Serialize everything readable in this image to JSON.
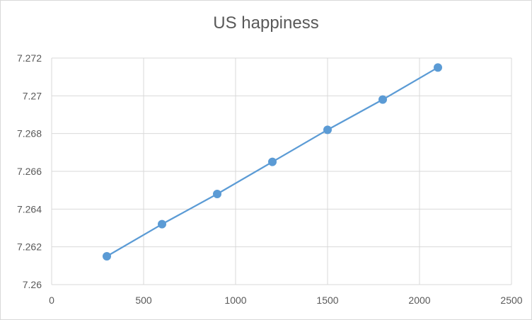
{
  "chart_data": {
    "type": "scatter",
    "title": "US happiness",
    "xlabel": "",
    "ylabel": "",
    "xlim": [
      0,
      2500
    ],
    "ylim": [
      7.26,
      7.272
    ],
    "x_ticks": [
      0,
      500,
      1000,
      1500,
      2000,
      2500
    ],
    "y_ticks": [
      7.26,
      7.262,
      7.264,
      7.266,
      7.268,
      7.27,
      7.272
    ],
    "x_tick_labels": [
      "0",
      "500",
      "1000",
      "1500",
      "2000",
      "2500"
    ],
    "y_tick_labels": [
      "7.26",
      "7.262",
      "7.264",
      "7.266",
      "7.268",
      "7.27",
      "7.272"
    ],
    "grid": true,
    "legend": "none",
    "series_color": "#5b9bd5",
    "grid_color": "#d9d9d9",
    "series": [
      {
        "x": [
          300,
          600,
          900,
          1200,
          1500,
          1800,
          2100
        ],
        "values": [
          7.2615,
          7.2632,
          7.2648,
          7.2665,
          7.2682,
          7.2698,
          7.2715
        ]
      }
    ]
  }
}
